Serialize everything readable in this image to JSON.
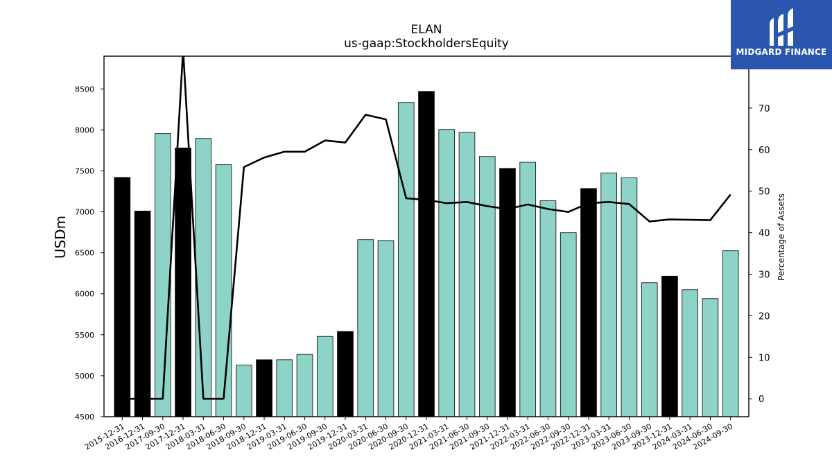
{
  "chart_data": {
    "type": "bar",
    "title": "ELAN",
    "subtitle": "us-gaap:StockholdersEquity",
    "ylabel": "USDm",
    "y2label": "Percentage of Assets",
    "ylim": [
      4500,
      8900
    ],
    "y2lim": [
      -4.3,
      82.5
    ],
    "yticks": [
      4500,
      5000,
      5500,
      6000,
      6500,
      7000,
      7500,
      8000,
      8500
    ],
    "y2ticks": [
      0,
      10,
      20,
      30,
      40,
      50,
      60,
      70
    ],
    "categories": [
      "2015-12-31",
      "2016-12-31",
      "2017-09-30",
      "2017-12-31",
      "2018-03-31",
      "2018-06-30",
      "2018-09-30",
      "2018-12-31",
      "2019-03-31",
      "2019-06-30",
      "2019-09-30",
      "2019-12-31",
      "2020-03-31",
      "2020-06-30",
      "2020-09-30",
      "2020-12-31",
      "2021-03-31",
      "2021-06-30",
      "2021-09-30",
      "2021-12-31",
      "2022-03-31",
      "2022-06-30",
      "2022-09-30",
      "2022-12-31",
      "2023-03-31",
      "2023-06-30",
      "2023-09-30",
      "2023-12-31",
      "2024-03-31",
      "2024-06-30",
      "2024-09-30"
    ],
    "series": [
      {
        "kind": "bar",
        "values": [
          7420,
          7010,
          7955,
          7780,
          7895,
          7575,
          5130,
          5195,
          5195,
          5260,
          5480,
          5540,
          6660,
          6650,
          8335,
          8470,
          8005,
          7970,
          7675,
          7530,
          7605,
          7135,
          6745,
          7285,
          7475,
          7415,
          6135,
          6215,
          6050,
          5940,
          6525
        ],
        "annual": [
          true,
          true,
          false,
          true,
          false,
          false,
          false,
          true,
          false,
          false,
          false,
          true,
          false,
          false,
          false,
          true,
          false,
          false,
          false,
          true,
          false,
          false,
          false,
          true,
          false,
          false,
          false,
          true,
          false,
          false,
          false
        ]
      },
      {
        "kind": "line",
        "axis": "right",
        "values": [
          0,
          0,
          0,
          84,
          0,
          0,
          55.8,
          58.1,
          59.5,
          59.5,
          62.2,
          61.7,
          68.4,
          67.3,
          48.3,
          47.9,
          47.1,
          47.4,
          46.4,
          45.7,
          46.8,
          45.7,
          45.0,
          47.1,
          47.4,
          46.9,
          42.7,
          43.2,
          43.1,
          43.0,
          49.2
        ]
      }
    ],
    "colors": {
      "bar": "#8dd3c7",
      "annual_bar": "#000000",
      "line": "#000000"
    }
  },
  "logo": {
    "text": "MIDGARD FINANCE",
    "background": "#2a56ad"
  }
}
